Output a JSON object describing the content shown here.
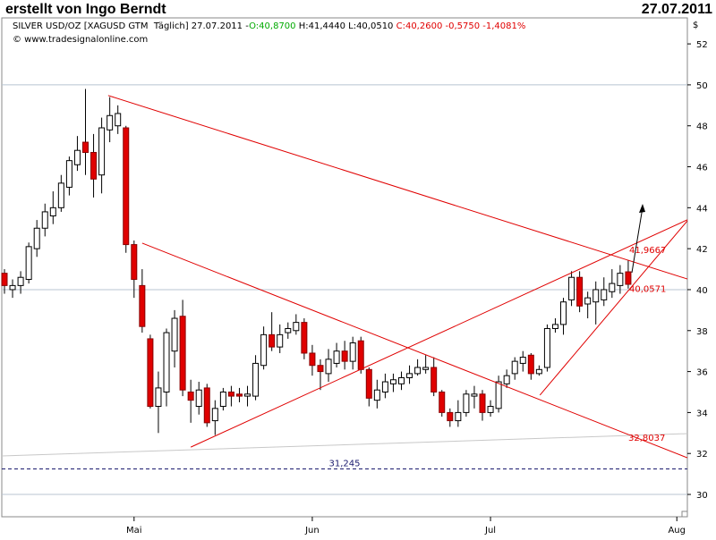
{
  "chart_data": {
    "type": "candlestick",
    "title": "erstellt von Ingo Berndt",
    "date": "27.07.2011",
    "info": [
      "SILVER USD/OZ [XAGUSD GTM  Täglich] 27.07.2011 -",
      "O:40,8700",
      " H:41,4440 L:40,0510 ",
      "C:40,2600 -0,5750 -1,4081%"
    ],
    "source": "© www.tradesignalonline.com",
    "currency": "$",
    "up_color": "#ffffff",
    "down_color": "#e00000",
    "x": [
      0,
      1,
      2,
      3,
      4,
      5,
      6,
      7,
      8,
      9,
      10,
      11,
      12,
      13,
      14,
      15,
      16,
      17,
      18,
      19,
      20,
      21,
      22,
      23,
      24,
      25,
      26,
      27,
      28,
      29,
      30,
      31,
      32,
      33,
      34,
      35,
      36,
      37,
      38,
      39,
      40,
      41,
      42,
      43,
      44,
      45,
      46,
      47,
      48,
      49,
      50,
      51,
      52,
      53,
      54,
      55,
      56,
      57,
      58,
      59,
      60,
      61,
      62,
      63,
      64,
      65,
      66,
      67,
      68,
      69,
      70,
      71,
      72,
      73,
      74,
      75,
      76,
      77
    ],
    "open": [
      40.8,
      40.0,
      40.2,
      40.5,
      42.0,
      43.0,
      43.6,
      44.0,
      45.0,
      46.1,
      47.2,
      46.7,
      45.6,
      47.8,
      48.0,
      47.9,
      42.2,
      40.2,
      37.6,
      34.3,
      35.0,
      37.0,
      38.7,
      35.0,
      34.3,
      35.2,
      33.6,
      34.3,
      35.0,
      34.9,
      34.8,
      34.8,
      36.3,
      37.8,
      37.2,
      37.9,
      38.0,
      38.4,
      36.9,
      36.3,
      35.9,
      36.4,
      37.0,
      36.5,
      37.5,
      36.1,
      34.6,
      35.0,
      35.4,
      35.4,
      35.7,
      35.9,
      36.1,
      36.2,
      35.0,
      34.0,
      33.6,
      34.0,
      34.8,
      34.9,
      34.0,
      34.2,
      35.4,
      35.9,
      36.4,
      36.8,
      35.9,
      36.2,
      38.1,
      38.3,
      39.5,
      40.6,
      39.3,
      39.4,
      39.5,
      39.9,
      40.2,
      40.87
    ],
    "high": [
      41.0,
      40.5,
      40.9,
      42.3,
      43.4,
      44.2,
      44.8,
      45.6,
      46.5,
      47.5,
      49.8,
      47.6,
      48.4,
      49.4,
      49.0,
      48.0,
      42.4,
      41.0,
      37.8,
      36.0,
      38.1,
      39.0,
      39.5,
      35.6,
      35.5,
      35.4,
      34.6,
      35.2,
      35.3,
      35.2,
      35.3,
      36.8,
      38.2,
      38.9,
      38.3,
      38.4,
      38.8,
      38.6,
      37.3,
      36.6,
      37.1,
      37.4,
      37.5,
      37.7,
      37.7,
      36.2,
      35.6,
      35.9,
      35.9,
      36.0,
      36.3,
      36.6,
      36.8,
      36.7,
      35.1,
      34.2,
      34.6,
      35.1,
      35.3,
      35.1,
      34.6,
      35.8,
      36.1,
      36.7,
      37.0,
      36.9,
      36.3,
      38.3,
      38.6,
      39.6,
      40.9,
      40.9,
      39.9,
      40.4,
      40.6,
      41.0,
      41.2,
      41.444
    ],
    "low": [
      39.8,
      39.6,
      39.8,
      40.3,
      41.6,
      42.6,
      43.2,
      43.8,
      44.6,
      45.8,
      45.6,
      44.5,
      44.7,
      47.2,
      47.6,
      41.8,
      39.6,
      37.9,
      34.2,
      33.0,
      34.3,
      36.2,
      34.8,
      33.5,
      33.9,
      33.3,
      32.9,
      34.1,
      34.3,
      34.5,
      34.3,
      34.6,
      36.1,
      37.0,
      36.9,
      37.6,
      37.8,
      36.6,
      35.8,
      35.1,
      35.5,
      36.2,
      36.1,
      36.1,
      35.9,
      34.3,
      34.2,
      34.7,
      35.0,
      35.1,
      35.4,
      35.8,
      35.9,
      34.8,
      33.8,
      33.3,
      33.3,
      33.8,
      34.2,
      33.6,
      33.8,
      34.0,
      35.2,
      35.6,
      36.0,
      35.6,
      35.8,
      36.0,
      37.9,
      37.8,
      39.2,
      38.9,
      38.6,
      38.3,
      39.2,
      39.6,
      39.8,
      40.051
    ],
    "close": [
      40.2,
      40.2,
      40.6,
      42.1,
      43.0,
      43.8,
      44.0,
      45.2,
      46.3,
      46.8,
      46.7,
      45.4,
      47.9,
      48.5,
      48.6,
      42.2,
      40.5,
      38.2,
      34.3,
      35.2,
      37.9,
      38.6,
      35.1,
      34.6,
      35.1,
      33.5,
      34.2,
      35.0,
      34.8,
      34.8,
      34.9,
      36.4,
      37.8,
      37.2,
      37.8,
      38.1,
      38.4,
      36.9,
      36.3,
      36.0,
      36.6,
      37.0,
      36.5,
      37.4,
      36.1,
      34.7,
      35.1,
      35.5,
      35.6,
      35.7,
      35.9,
      36.2,
      36.2,
      35.0,
      34.0,
      33.6,
      34.0,
      34.9,
      34.9,
      34.0,
      34.3,
      35.5,
      35.8,
      36.5,
      36.7,
      35.9,
      36.1,
      38.1,
      38.3,
      39.4,
      40.6,
      39.2,
      39.6,
      40.0,
      40.0,
      40.3,
      40.8,
      40.26
    ],
    "xlim": [
      -0.33,
      84.3
    ],
    "xticks": [
      {
        "value": 16,
        "label": "Mai"
      },
      {
        "value": 38,
        "label": "Jun"
      },
      {
        "value": 60,
        "label": "Jul"
      },
      {
        "value": 83,
        "label": "Aug"
      }
    ],
    "ylim": [
      28.91,
      53.27
    ],
    "yticks": [
      30,
      32,
      34,
      36,
      38,
      40,
      42,
      44,
      46,
      48,
      50,
      52
    ],
    "grid_values": [
      30,
      40,
      50
    ],
    "trendlines": [
      {
        "color": "#e00000",
        "x": [
          12.8,
          84.3
        ],
        "y": [
          49.48,
          40.52
        ]
      },
      {
        "color": "#e00000",
        "x": [
          17.0,
          84.3
        ],
        "y": [
          42.27,
          31.79
        ]
      },
      {
        "color": "#e00000",
        "x": [
          23.0,
          84.3
        ],
        "y": [
          32.31,
          43.41
        ]
      },
      {
        "color": "#e00000",
        "x": [
          66.1,
          84.3
        ],
        "y": [
          34.85,
          43.36
        ]
      },
      {
        "color": "#c8c8c8",
        "x": [
          -0.33,
          84.3
        ],
        "y": [
          31.88,
          32.97
        ]
      }
    ],
    "hline": {
      "value": 31.245,
      "label": "31,245",
      "color": "#1a1a6e"
    },
    "level_labels": [
      {
        "value": 41.9667,
        "label": "41,9667"
      },
      {
        "value": 40.0571,
        "label": "40,0571"
      },
      {
        "value": 32.8037,
        "label": "32,8037"
      }
    ]
  }
}
